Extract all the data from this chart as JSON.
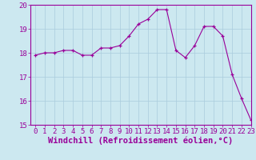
{
  "x": [
    0,
    1,
    2,
    3,
    4,
    5,
    6,
    7,
    8,
    9,
    10,
    11,
    12,
    13,
    14,
    15,
    16,
    17,
    18,
    19,
    20,
    21,
    22,
    23
  ],
  "y": [
    17.9,
    18.0,
    18.0,
    18.1,
    18.1,
    17.9,
    17.9,
    18.2,
    18.2,
    18.3,
    18.7,
    19.2,
    19.4,
    19.8,
    19.8,
    18.1,
    17.8,
    18.3,
    19.1,
    19.1,
    18.7,
    17.1,
    16.1,
    15.2
  ],
  "line_color": "#990099",
  "marker": "+",
  "marker_size": 3,
  "background_color": "#cce8f0",
  "grid_color": "#aaccdd",
  "xlabel": "Windchill (Refroidissement éolien,°C)",
  "ylim": [
    15,
    20
  ],
  "xlim": [
    -0.5,
    23
  ],
  "yticks": [
    15,
    16,
    17,
    18,
    19,
    20
  ],
  "xticks": [
    0,
    1,
    2,
    3,
    4,
    5,
    6,
    7,
    8,
    9,
    10,
    11,
    12,
    13,
    14,
    15,
    16,
    17,
    18,
    19,
    20,
    21,
    22,
    23
  ],
  "tick_color": "#990099",
  "label_color": "#990099",
  "axis_color": "#990099",
  "tick_fontsize": 6.5,
  "xlabel_fontsize": 7.5
}
